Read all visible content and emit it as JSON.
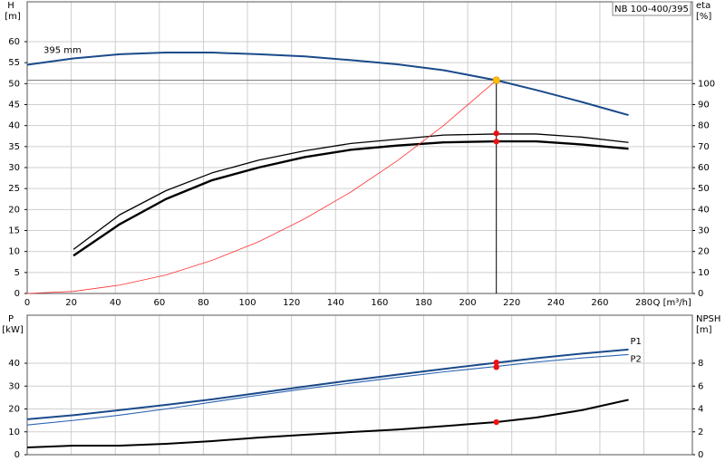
{
  "chart_data": [
    {
      "type": "line",
      "title": "NB 100-400/395",
      "ylabel": "H",
      "yunit": "[m]",
      "y2label": "eta",
      "y2unit": "[%]",
      "xlabel": "Q [m³/h]",
      "xlim": [
        0,
        302
      ],
      "xticks": [
        0,
        20,
        40,
        60,
        80,
        100,
        120,
        140,
        160,
        180,
        200,
        220,
        240,
        260,
        280
      ],
      "ylim": [
        0,
        69.5
      ],
      "yticks": [
        0,
        5,
        10,
        15,
        20,
        25,
        30,
        35,
        40,
        45,
        50,
        55,
        60
      ],
      "y2lim": [
        0,
        139
      ],
      "y2ticks": [
        0,
        10,
        20,
        30,
        40,
        50,
        60,
        70,
        80,
        90,
        100
      ],
      "grid": true,
      "series": [
        {
          "name": "395 mm",
          "color": "#1a4a8a",
          "width": 2,
          "x": [
            0,
            21,
            42,
            63,
            84,
            105,
            126,
            147,
            168,
            189,
            213,
            231,
            252,
            273
          ],
          "values": [
            54.5,
            56,
            57,
            57.4,
            57.4,
            57,
            56.5,
            55.6,
            54.6,
            53.2,
            50.8,
            48.5,
            45.6,
            42.5
          ]
        },
        {
          "color": "#000000",
          "width": 2.4,
          "axis": "y2",
          "x": [
            21,
            42,
            63,
            84,
            105,
            126,
            147,
            168,
            189,
            213,
            231,
            252,
            273
          ],
          "values": [
            18,
            33,
            45,
            54,
            60,
            65,
            68.5,
            70.5,
            72,
            72.5,
            72.5,
            71,
            69
          ]
        },
        {
          "color": "#000000",
          "width": 1.3,
          "axis": "y2",
          "x": [
            21,
            42,
            63,
            84,
            105,
            126,
            147,
            168,
            189,
            213,
            231,
            252,
            273
          ],
          "values": [
            21,
            37.5,
            49,
            57.5,
            63.5,
            68,
            71.5,
            73.5,
            75.5,
            76,
            76,
            74.5,
            72
          ]
        },
        {
          "color": "#ff3030",
          "width": 0.8,
          "x": [
            0,
            21,
            42,
            63,
            84,
            105,
            126,
            147,
            168,
            189,
            213
          ],
          "values": [
            0,
            0.5,
            2,
            4.4,
            7.9,
            12.3,
            17.8,
            24.2,
            31.6,
            40,
            50.8
          ]
        }
      ],
      "operating_point": {
        "x": 213,
        "y": 50.8,
        "color": "#ffc000"
      },
      "points": [
        {
          "x": 213,
          "y": 76.3,
          "axis": "y2"
        },
        {
          "x": 213,
          "y": 72.4,
          "axis": "y2"
        }
      ],
      "point_color": "#ee1111"
    },
    {
      "type": "line",
      "ylabel": "P",
      "yunit": "[kW]",
      "y2label": "NPSH",
      "y2unit": "[m]",
      "xlim": [
        0,
        302
      ],
      "xticks": [
        0,
        20,
        40,
        60,
        80,
        100,
        120,
        140,
        160,
        180,
        200,
        220,
        240,
        260,
        280
      ],
      "ylim": [
        0,
        61
      ],
      "yticks": [
        0,
        10,
        20,
        30,
        40
      ],
      "y2lim": [
        0,
        12.2
      ],
      "y2ticks": [
        0,
        2,
        4,
        6,
        8
      ],
      "grid": true,
      "series": [
        {
          "name": "P1",
          "color": "#1a4a8a",
          "width": 2,
          "x": [
            0,
            21,
            42,
            63,
            84,
            105,
            126,
            147,
            168,
            189,
            213,
            231,
            252,
            273
          ],
          "values": [
            15.5,
            17.3,
            19.5,
            21.8,
            24.2,
            27,
            29.8,
            32.5,
            35,
            37.5,
            40.2,
            42.2,
            44.2,
            46
          ]
        },
        {
          "name": "P2",
          "color": "#2a62b0",
          "width": 1.1,
          "x": [
            0,
            21,
            42,
            63,
            84,
            105,
            126,
            147,
            168,
            189,
            213,
            231,
            252,
            273
          ],
          "values": [
            13,
            15,
            17.3,
            20,
            23,
            26,
            28.8,
            31.3,
            33.8,
            36.2,
            38.6,
            40.5,
            42.3,
            43.8
          ]
        },
        {
          "color": "#000000",
          "width": 2,
          "axis": "y2",
          "x": [
            0,
            21,
            42,
            63,
            84,
            105,
            126,
            147,
            168,
            189,
            213,
            231,
            252,
            273
          ],
          "values": [
            0.63,
            0.79,
            0.79,
            0.95,
            1.19,
            1.5,
            1.74,
            1.98,
            2.2,
            2.5,
            2.85,
            3.25,
            3.9,
            4.8
          ]
        }
      ],
      "points": [
        {
          "x": 213,
          "y": 40.3
        },
        {
          "x": 213,
          "y": 38.3
        },
        {
          "x": 213,
          "y": 2.85,
          "axis": "y2"
        }
      ],
      "point_color": "#ee1111"
    }
  ]
}
